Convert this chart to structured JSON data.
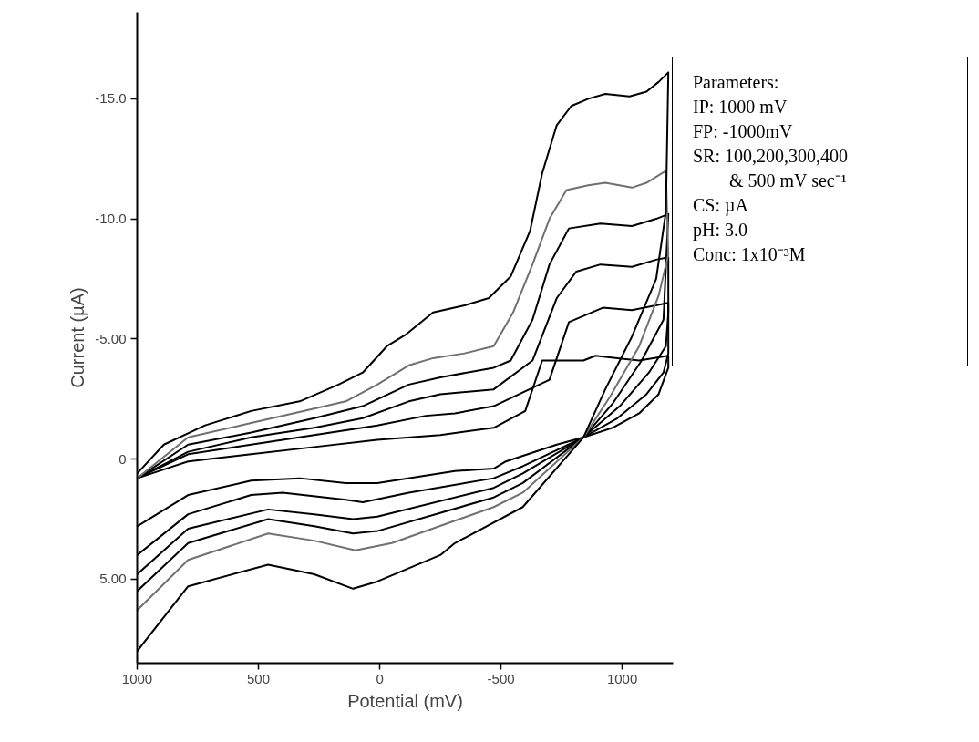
{
  "chart_data": {
    "type": "line",
    "xlabel": "Potential (mV)",
    "ylabel": "Current (µA)",
    "xlim": [
      1000,
      -1210
    ],
    "ylim": [
      8.5,
      -18.6
    ],
    "xticks": [
      1000,
      500,
      0,
      -500,
      {
        "value": -1000,
        "label": "1000"
      }
    ],
    "yticks": [
      {
        "value": -15,
        "label": "-15.0"
      },
      {
        "value": -10,
        "label": "-10.0"
      },
      {
        "value": -5,
        "label": "-5.00"
      },
      0,
      {
        "value": 5,
        "label": "5.00"
      }
    ],
    "grid": false,
    "marker": "none",
    "line_style": "solid",
    "annotations": [
      "Parameters:",
      "IP: 1000 mV",
      "FP: -1000mV",
      "SR: 100,200,300,400",
      "& 500 mV sec⁻¹",
      "CS: µA",
      "pH: 3.0",
      "Conc: 1x10⁻³M"
    ],
    "series": [
      {
        "color": "#000000",
        "x": [
          1000,
          790,
          530,
          270,
          10,
          -250,
          -470,
          -600,
          -670,
          -710,
          -840,
          -890,
          -980,
          -1070,
          -1190,
          -1190,
          -1150,
          -1070,
          -960,
          -840,
          -730,
          -520,
          -470,
          -310,
          10,
          140,
          330,
          530,
          790,
          1000
        ],
        "values": [
          0.8,
          0.1,
          -0.2,
          -0.5,
          -0.8,
          -1.0,
          -1.3,
          -2.0,
          -4.1,
          -4.1,
          -4.1,
          -4.3,
          -4.2,
          -4.1,
          -4.3,
          -3.8,
          -2.7,
          -1.9,
          -1.3,
          -0.9,
          -0.6,
          0.1,
          0.4,
          0.5,
          1.0,
          1.0,
          0.8,
          0.9,
          1.5,
          2.8
        ]
      },
      {
        "color": "#000000",
        "x": [
          1000,
          790,
          530,
          270,
          10,
          -190,
          -310,
          -470,
          -700,
          -780,
          -920,
          -1040,
          -1190,
          -1190,
          -1170,
          -1100,
          -980,
          -840,
          -590,
          -470,
          -120,
          70,
          140,
          400,
          530,
          790,
          1000
        ],
        "values": [
          0.8,
          -0.2,
          -0.6,
          -1.0,
          -1.4,
          -1.8,
          -1.9,
          -2.2,
          -3.3,
          -5.7,
          -6.3,
          -6.2,
          -6.5,
          -4.4,
          -3.6,
          -2.7,
          -1.7,
          -0.9,
          0.3,
          0.8,
          1.4,
          1.8,
          1.7,
          1.4,
          1.5,
          2.3,
          4.0
        ]
      },
      {
        "color": "#000000",
        "x": [
          1000,
          790,
          530,
          270,
          70,
          -120,
          -250,
          -470,
          -630,
          -730,
          -810,
          -910,
          -1040,
          -1140,
          -1190,
          -1190,
          -1180,
          -1110,
          -990,
          -840,
          -590,
          -470,
          10,
          110,
          270,
          460,
          790,
          1000
        ],
        "values": [
          0.8,
          -0.3,
          -0.9,
          -1.3,
          -1.7,
          -2.4,
          -2.7,
          -2.9,
          -4.1,
          -6.7,
          -7.8,
          -8.1,
          -8.0,
          -8.3,
          -8.4,
          -6.1,
          -4.7,
          -3.6,
          -2.2,
          -0.9,
          0.6,
          1.2,
          2.4,
          2.5,
          2.3,
          2.1,
          2.9,
          4.8
        ]
      },
      {
        "color": "#000000",
        "x": [
          1000,
          790,
          530,
          270,
          70,
          -120,
          -250,
          -470,
          -540,
          -630,
          -700,
          -780,
          -910,
          -1040,
          -1140,
          -1190,
          -1170,
          -1080,
          -960,
          -840,
          -590,
          -470,
          10,
          110,
          270,
          460,
          790,
          1000
        ],
        "values": [
          0.8,
          -0.6,
          -1.1,
          -1.7,
          -2.2,
          -3.1,
          -3.4,
          -3.8,
          -4.1,
          -5.8,
          -8.1,
          -9.6,
          -9.8,
          -9.7,
          -10.0,
          -10.2,
          -5.8,
          -4.1,
          -2.3,
          -0.9,
          1.0,
          1.6,
          3.0,
          3.1,
          2.8,
          2.5,
          3.5,
          5.5
        ]
      },
      {
        "color": "#707070",
        "x": [
          1000,
          790,
          530,
          270,
          140,
          10,
          -120,
          -220,
          -350,
          -470,
          -550,
          -630,
          -700,
          -770,
          -860,
          -930,
          -1040,
          -1100,
          -1180,
          -1190,
          -1150,
          -1070,
          -950,
          -840,
          -590,
          -470,
          -50,
          100,
          270,
          460,
          790,
          1000
        ],
        "values": [
          0.8,
          -0.9,
          -1.5,
          -2.1,
          -2.4,
          -3.1,
          -3.9,
          -4.2,
          -4.4,
          -4.7,
          -6.1,
          -8.1,
          -10.0,
          -11.2,
          -11.4,
          -11.5,
          -11.3,
          -11.5,
          -12.0,
          -8.5,
          -6.8,
          -4.7,
          -2.6,
          -0.9,
          1.4,
          2.0,
          3.5,
          3.8,
          3.4,
          3.1,
          4.2,
          6.3
        ]
      },
      {
        "color": "#000000",
        "x": [
          1000,
          890,
          720,
          530,
          330,
          170,
          70,
          -30,
          -110,
          -220,
          -350,
          -450,
          -540,
          -620,
          -670,
          -730,
          -790,
          -860,
          -930,
          -1030,
          -1100,
          -1150,
          -1190,
          -1180,
          -1140,
          -1040,
          -930,
          -840,
          -590,
          -310,
          -250,
          10,
          110,
          270,
          460,
          790,
          1000
        ],
        "values": [
          0.6,
          -0.6,
          -1.4,
          -2.0,
          -2.4,
          -3.1,
          -3.6,
          -4.7,
          -5.2,
          -6.1,
          -6.4,
          -6.7,
          -7.6,
          -9.5,
          -11.9,
          -13.9,
          -14.7,
          -15.0,
          -15.2,
          -15.1,
          -15.3,
          -15.7,
          -16.1,
          -10.3,
          -7.5,
          -5.1,
          -2.9,
          -0.9,
          2.0,
          3.5,
          4.0,
          5.1,
          5.4,
          4.8,
          4.4,
          5.3,
          8.0
        ]
      }
    ]
  }
}
